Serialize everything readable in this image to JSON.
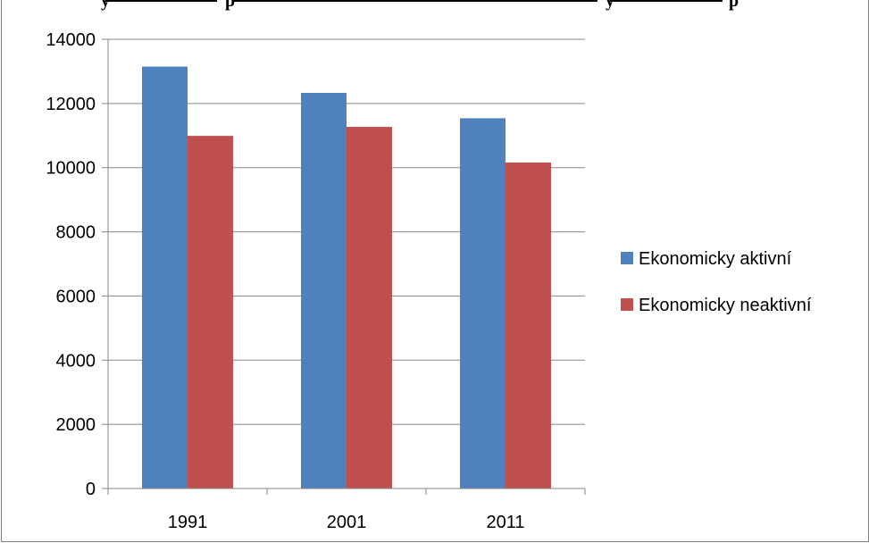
{
  "chart_data": {
    "type": "bar",
    "title": "…y … p … y … p…",
    "categories": [
      "1991",
      "2001",
      "2011"
    ],
    "series": [
      {
        "name": "Ekonomicky aktivní",
        "color": "#4f81bd",
        "values": [
          13150,
          12330,
          11540
        ]
      },
      {
        "name": "Ekonomicky neaktivní",
        "color": "#c0504d",
        "values": [
          10990,
          11270,
          10160
        ]
      }
    ],
    "ylim": [
      0,
      14000
    ],
    "yticks": [
      0,
      2000,
      4000,
      6000,
      8000,
      10000,
      12000,
      14000
    ],
    "grid": true,
    "legend": "right",
    "xlabel": "",
    "ylabel": ""
  }
}
